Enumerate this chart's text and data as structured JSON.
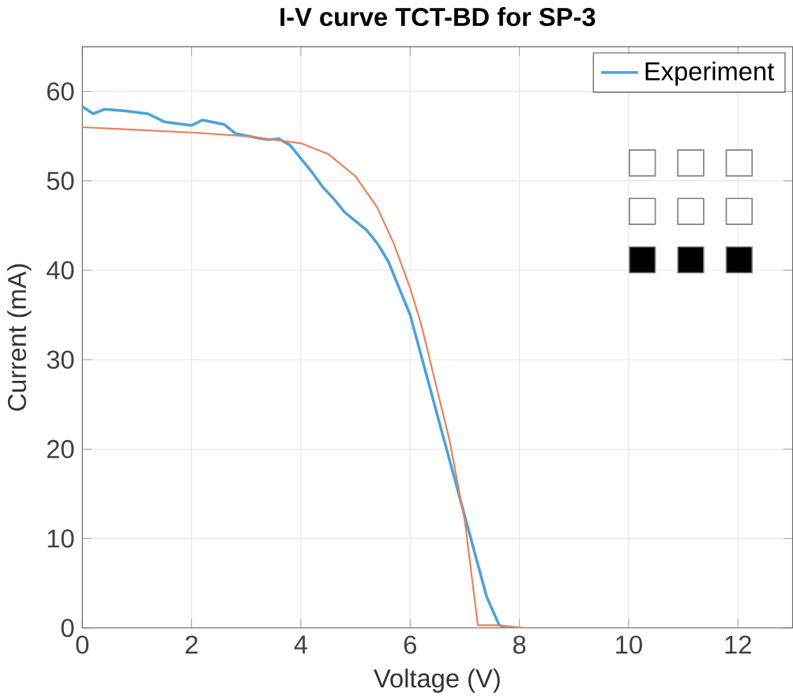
{
  "chart_data": {
    "type": "line",
    "title": "I-V curve TCT-BD for SP-3",
    "xlabel": "Voltage (V)",
    "ylabel": "Current (mA)",
    "xlim": [
      0,
      13
    ],
    "ylim": [
      0,
      65
    ],
    "xticks": [
      0,
      2,
      4,
      6,
      8,
      10,
      12
    ],
    "yticks": [
      0,
      10,
      20,
      30,
      40,
      50,
      60
    ],
    "grid": true,
    "legend": "top right",
    "series": [
      {
        "name": "Experiment",
        "color": "#4da3d8",
        "x": [
          0,
          0.2,
          0.4,
          0.8,
          1.2,
          1.5,
          2,
          2.2,
          2.6,
          2.8,
          3.2,
          3.4,
          3.6,
          3.8,
          4.0,
          4.2,
          4.4,
          4.6,
          4.8,
          5.0,
          5.2,
          5.4,
          5.6,
          5.8,
          6.0,
          6.2,
          6.4,
          6.6,
          6.8,
          7.0,
          7.2,
          7.4,
          7.63,
          7.8
        ],
        "values": [
          58.3,
          57.5,
          58,
          57.8,
          57.5,
          56.6,
          56.2,
          56.8,
          56.3,
          55.3,
          54.8,
          54.6,
          54.7,
          54,
          52.5,
          51,
          49.3,
          48,
          46.5,
          45.5,
          44.5,
          43,
          41,
          38,
          35,
          30.5,
          26,
          21.5,
          17,
          12.5,
          8,
          3.5,
          0.3,
          0
        ]
      },
      {
        "color": "#e8825a",
        "x": [
          0,
          1,
          2,
          3,
          3.5,
          4,
          4.5,
          5,
          5.4,
          5.7,
          6.0,
          6.2,
          6.4,
          6.72,
          7.0,
          7.24,
          7.6,
          8.1
        ],
        "values": [
          56,
          55.7,
          55.4,
          55,
          54.6,
          54.2,
          53,
          50.5,
          47,
          43,
          38,
          34,
          29,
          21,
          12,
          0.3,
          0.3,
          0
        ]
      }
    ]
  }
}
